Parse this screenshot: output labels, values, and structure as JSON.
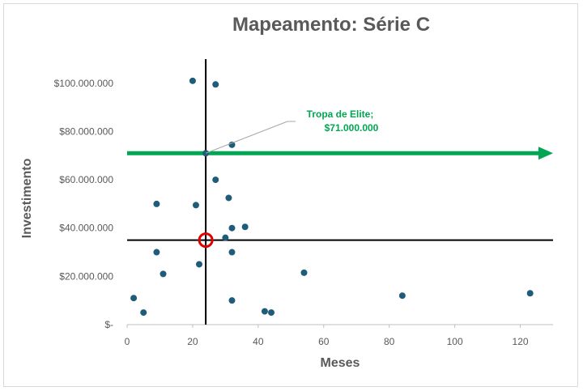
{
  "chart_data": {
    "type": "scatter",
    "title": "Mapeamento: Série C",
    "xlabel": "Meses",
    "ylabel": "Investimento",
    "xlim": [
      0,
      130
    ],
    "ylim": [
      0,
      110000000
    ],
    "x_ticks": [
      0,
      20,
      40,
      60,
      80,
      100,
      120
    ],
    "x_tick_labels": [
      "0",
      "20",
      "40",
      "60",
      "80",
      "100",
      "120"
    ],
    "y_ticks": [
      0,
      20000000,
      40000000,
      60000000,
      80000000,
      100000000
    ],
    "y_tick_labels": [
      "$-",
      "$20.000.000",
      "$40.000.000",
      "$60.000.000",
      "$80.000.000",
      "$100.000.000"
    ],
    "grid": false,
    "series": [
      {
        "color": "#1f5c7a",
        "points": [
          {
            "x": 2,
            "y": 11000000
          },
          {
            "x": 5,
            "y": 5000000
          },
          {
            "x": 9,
            "y": 50000000
          },
          {
            "x": 9,
            "y": 30000000
          },
          {
            "x": 11,
            "y": 21000000
          },
          {
            "x": 20,
            "y": 101000000
          },
          {
            "x": 21,
            "y": 49500000
          },
          {
            "x": 22,
            "y": 25000000
          },
          {
            "x": 24,
            "y": 71000000
          },
          {
            "x": 27,
            "y": 99500000
          },
          {
            "x": 27,
            "y": 60000000
          },
          {
            "x": 30,
            "y": 36000000
          },
          {
            "x": 31,
            "y": 52500000
          },
          {
            "x": 32,
            "y": 74500000
          },
          {
            "x": 32,
            "y": 40000000
          },
          {
            "x": 32,
            "y": 30000000
          },
          {
            "x": 32,
            "y": 10000000
          },
          {
            "x": 36,
            "y": 40500000
          },
          {
            "x": 42,
            "y": 5500000
          },
          {
            "x": 44,
            "y": 5000000
          },
          {
            "x": 54,
            "y": 21500000
          },
          {
            "x": 84,
            "y": 12000000
          },
          {
            "x": 123,
            "y": 13000000
          }
        ]
      }
    ],
    "reference_lines": {
      "vertical_x": 24,
      "horizontal_y": 35000000,
      "color": "#000000"
    },
    "highlight": {
      "x": 24,
      "y": 35000000,
      "color": "#e00000"
    },
    "arrow": {
      "y": 71000000,
      "color": "#00a651"
    },
    "annotation": {
      "line1": "Tropa de Elite;",
      "line2": "$71.000.000",
      "point_x": 24,
      "point_y": 71000000,
      "color": "#00a651"
    }
  }
}
